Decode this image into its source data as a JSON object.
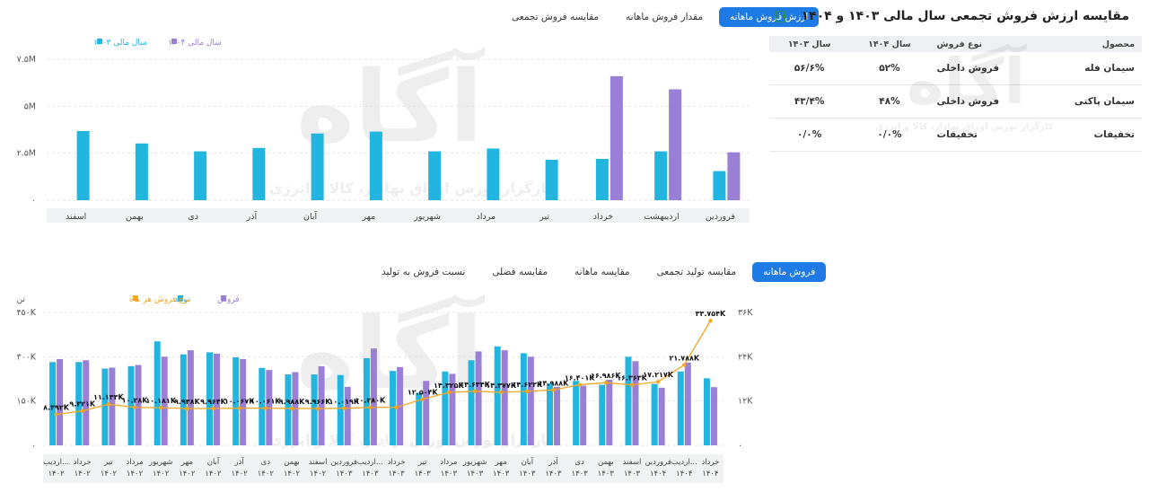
{
  "panel": {
    "title": "مقایسه ارزش فروش تجمعی سال مالی ۱۴۰۳ و ۱۴۰۴",
    "export_icon": "excel-icon",
    "columns": [
      "محصول",
      "نوع فروش",
      "سال ۱۴۰۴",
      "سال ۱۴۰۳"
    ],
    "rows": [
      [
        "سیمان فله",
        "فروش داخلی",
        "۵۲%",
        "۵۶/۶%"
      ],
      [
        "سیمان پاکتی",
        "فروش داخلی",
        "۴۸%",
        "۴۳/۴%"
      ],
      [
        "تخفیفات",
        "تخفیفات",
        "۰/۰%",
        "۰/۰%"
      ]
    ]
  },
  "top_tabs": {
    "items": [
      "ارزش فروش ماهانه",
      "مقدار فروش ماهانه",
      "مقایسه فروش تجمعی"
    ],
    "active": 0
  },
  "bottom_tabs": {
    "items": [
      "فروش ماهانه",
      "مقایسه تولید تجمعی",
      "مقایسه ماهانه",
      "مقایسه فصلی",
      "نسبت فروش به تولید"
    ],
    "active": 0
  },
  "watermark": {
    "logo": "آگاه",
    "tagline": "کارگزار بورس اوراق بهادار، کالا و انرژی"
  },
  "colors": {
    "blue": "#22b5e0",
    "purple": "#9a7fd6",
    "orange": "#f5a623",
    "accent": "#1e7be6"
  },
  "chart_data": [
    {
      "type": "bar",
      "categories": [
        "فروردین",
        "اردیبهشت",
        "خرداد",
        "تیر",
        "مرداد",
        "شهریور",
        "مهر",
        "آبان",
        "آذر",
        "دی",
        "بهمن",
        "اسفند"
      ],
      "series": [
        {
          "name": "سال مالی ۱۴۰۳",
          "color": "#22b5e0",
          "values": [
            1.55,
            2.6,
            2.2,
            2.15,
            2.75,
            2.6,
            3.65,
            3.55,
            2.78,
            2.6,
            3.02,
            3.68
          ]
        },
        {
          "name": "سال مالی ۱۴۰۴",
          "color": "#9a7fd6",
          "values": [
            2.55,
            5.9,
            6.6,
            null,
            null,
            null,
            null,
            null,
            null,
            null,
            null,
            null
          ]
        }
      ],
      "yticks": [
        "۰",
        "۲.۵M",
        "۵M",
        "۷.۵M"
      ],
      "ylim": [
        0,
        7.5
      ],
      "grid": true,
      "legend": "top-left"
    },
    {
      "type": "bar",
      "categories": [
        [
          "اردیب...",
          "۱۴۰۲"
        ],
        [
          "خرداد",
          "۱۴۰۲"
        ],
        [
          "تیر",
          "۱۴۰۲"
        ],
        [
          "مرداد",
          "۱۴۰۲"
        ],
        [
          "شهریور",
          "۱۴۰۲"
        ],
        [
          "مهر",
          "۱۴۰۲"
        ],
        [
          "آبان",
          "۱۴۰۲"
        ],
        [
          "آذر",
          "۱۴۰۲"
        ],
        [
          "دی",
          "۱۴۰۲"
        ],
        [
          "بهمن",
          "۱۴۰۲"
        ],
        [
          "اسفند",
          "۱۴۰۲"
        ],
        [
          "فروردین",
          "۱۴۰۳"
        ],
        [
          "اردیب...",
          "۱۴۰۳"
        ],
        [
          "خرداد",
          "۱۴۰۳"
        ],
        [
          "تیر",
          "۱۴۰۳"
        ],
        [
          "مرداد",
          "۱۴۰۳"
        ],
        [
          "شهریور",
          "۱۴۰۳"
        ],
        [
          "مهر",
          "۱۴۰۳"
        ],
        [
          "آبان",
          "۱۴۰۳"
        ],
        [
          "آذر",
          "۱۴۰۳"
        ],
        [
          "دی",
          "۱۴۰۳"
        ],
        [
          "بهمن",
          "۱۴۰۳"
        ],
        [
          "اسفند",
          "۱۴۰۳"
        ],
        [
          "فروردین",
          "۱۴۰۴"
        ],
        [
          "اردیب...",
          "۱۴۰۴"
        ],
        [
          "خرداد",
          "۱۴۰۴"
        ]
      ],
      "series": [
        {
          "name": "تولید",
          "color": "#22b5e0",
          "axis": "left",
          "values": [
            282,
            282,
            260,
            268,
            352,
            308,
            315,
            298,
            262,
            240,
            240,
            238,
            295,
            252,
            178,
            250,
            288,
            335,
            312,
            210,
            218,
            205,
            300,
            208,
            250,
            227
          ]
        },
        {
          "name": "فروش",
          "color": "#9a7fd6",
          "axis": "left",
          "values": [
            292,
            288,
            263,
            272,
            300,
            322,
            310,
            292,
            255,
            248,
            268,
            198,
            328,
            265,
            218,
            242,
            318,
            322,
            300,
            198,
            202,
            222,
            285,
            195,
            280,
            197
          ]
        },
        {
          "name": "نرخ فروش هر ماه",
          "color": "#f5a623",
          "axis": "right",
          "type": "line",
          "values": [
            8.392,
            9.321,
            11.133,
            10.28,
            10.181,
            9.938,
            9.964,
            10.067,
            10.061,
            9.988,
            9.966,
            10.019,
            10.28,
            10.28,
            12.504,
            14.325,
            14.634,
            14.377,
            14.623,
            14.988,
            16.401,
            16.986,
            16.363,
            17.217,
            21.788,
            33.754
          ],
          "labels": [
            "۸.۳۹۲K",
            "۹.۳۲۱K",
            "۱۱.۱۳۳K",
            "۱۰.۲۸K",
            "۱۰.۱۸۱K",
            "۹.۹۳۸K",
            "۹.۹۶۴K",
            "۱۰.۰۶۷K",
            "۱۰.۰۶۱K",
            "۹.۹۸۸K",
            "۹.۹۶۶K",
            "۱۰.۰۱۹K",
            "۱۰.۲۸۰K",
            "",
            "۱۲.۵۰۴K",
            "۱۴.۳۲۵K",
            "۱۴.۶۳۴K",
            "۱۴.۳۷۷K",
            "۱۴.۶۲۳K",
            "۱۴.۹۸۸K",
            "۱۶.۴۰۱K",
            "۱۶.۹۸۶K",
            "۱۶.۳۶۳K",
            "۱۷.۲۱۷K",
            "۲۱.۷۸۸K",
            "۳۳.۷۵۴K"
          ]
        }
      ],
      "yticks_left": [
        "۰",
        "۱۵۰K",
        "۳۰۰K",
        "۴۵۰K"
      ],
      "ylim_left": [
        0,
        450
      ],
      "ylabel_left": "تن",
      "yticks_right": [
        "۰",
        "۱۲K",
        "۲۴K",
        "۳۶K"
      ],
      "ylim_right": [
        0,
        36
      ],
      "grid": true,
      "legend": "top-left"
    }
  ]
}
